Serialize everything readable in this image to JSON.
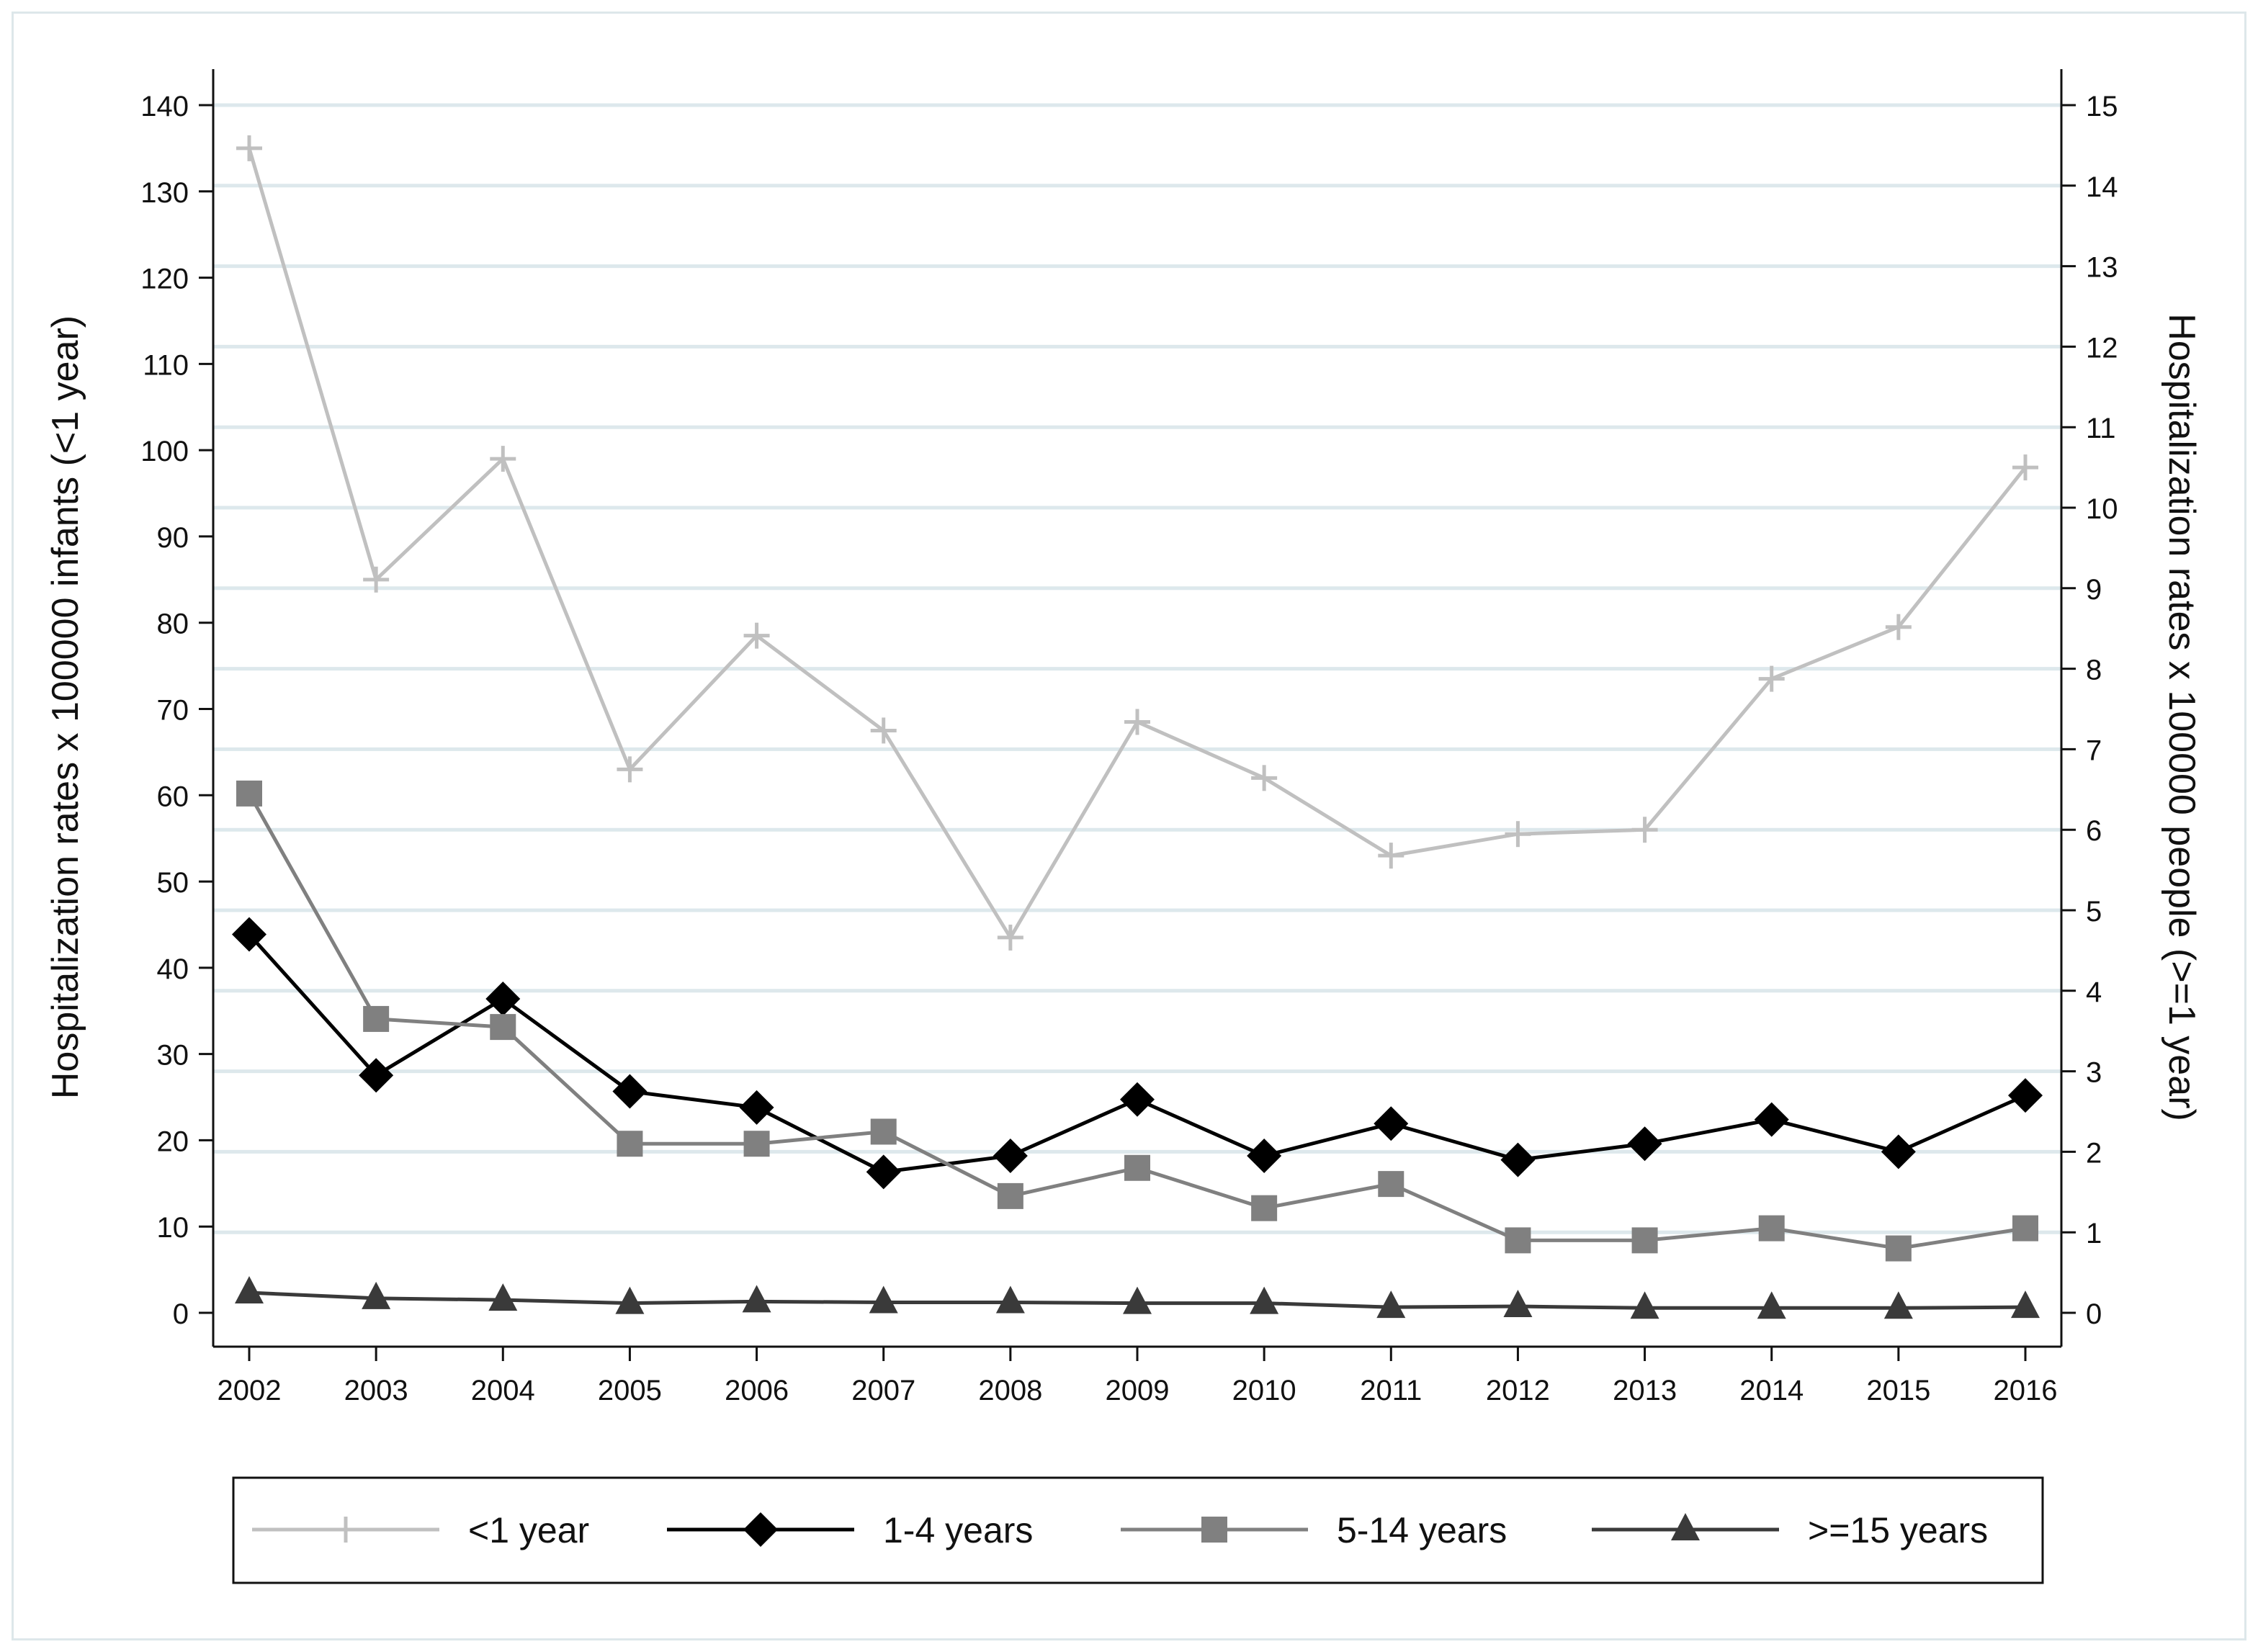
{
  "chart_data": {
    "type": "line",
    "title": "",
    "xlabel": "",
    "ylabel": "Hospitalization rates x 100000 infants (<1 year)",
    "y2label": "Hospitalization rates x 100000 people (>=1 year)",
    "x": [
      "2002",
      "2003",
      "2004",
      "2005",
      "2006",
      "2007",
      "2008",
      "2009",
      "2010",
      "2011",
      "2012",
      "2013",
      "2014",
      "2015",
      "2016"
    ],
    "ylim": [
      0,
      140
    ],
    "y_ticks": [
      0,
      10,
      20,
      30,
      40,
      50,
      60,
      70,
      80,
      90,
      100,
      110,
      120,
      130,
      140
    ],
    "y2lim": [
      0,
      15
    ],
    "y2_ticks": [
      0,
      1,
      2,
      3,
      4,
      5,
      6,
      7,
      8,
      9,
      10,
      11,
      12,
      13,
      14,
      15
    ],
    "grid": true,
    "legend_position": "bottom",
    "series": [
      {
        "name": "<1 year",
        "axis": "left",
        "marker": "plus",
        "color": "#c0c0c0",
        "values": [
          135,
          85,
          99,
          63,
          78.5,
          67.5,
          43.5,
          68.5,
          62,
          53,
          55.5,
          56,
          73.5,
          79.5,
          98
        ]
      },
      {
        "name": "1-4 years",
        "axis": "right",
        "marker": "diamond",
        "color": "#000000",
        "values": [
          4.7,
          2.95,
          3.9,
          2.75,
          2.55,
          1.75,
          1.95,
          2.65,
          1.95,
          2.35,
          1.9,
          2.1,
          2.4,
          2.0,
          2.7
        ]
      },
      {
        "name": "5-14 years",
        "axis": "right",
        "marker": "square",
        "color": "#808080",
        "values": [
          6.45,
          3.65,
          3.55,
          2.1,
          2.1,
          2.25,
          1.45,
          1.8,
          1.3,
          1.6,
          0.9,
          0.9,
          1.05,
          0.8,
          1.05
        ]
      },
      {
        "name": ">=15 years",
        "axis": "right",
        "marker": "triangle",
        "color": "#3a3a3a",
        "values": [
          0.25,
          0.18,
          0.16,
          0.12,
          0.14,
          0.13,
          0.13,
          0.12,
          0.12,
          0.07,
          0.08,
          0.06,
          0.06,
          0.06,
          0.07
        ]
      }
    ]
  }
}
